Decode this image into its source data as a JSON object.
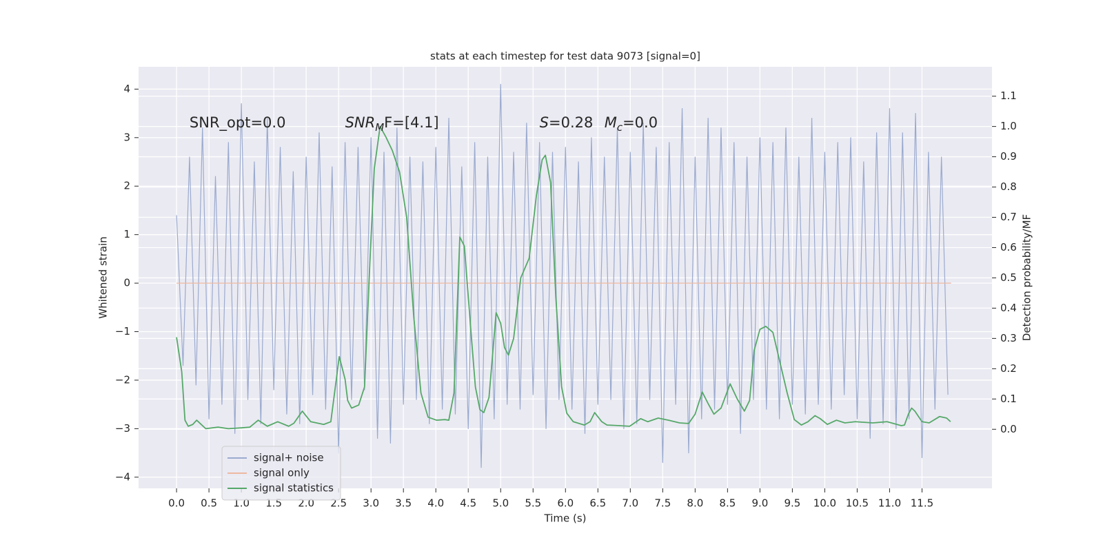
{
  "chart_data": {
    "type": "line",
    "title": "stats at each timestep for test data 9073 [signal=0]",
    "xlabel": "Time (s)",
    "ylabel": "Whitened strain",
    "y2label": "Detection probability/MF",
    "annotations": [
      {
        "text": "SNR_opt=0.0"
      },
      {
        "base": "SNR",
        "sub": "M",
        "rest": "F=[4.1]"
      },
      {
        "base": "S",
        "rest": "=0.28   "
      },
      {
        "base": "M",
        "sub": "c",
        "rest": "=0.0"
      }
    ],
    "grid": true,
    "legend": "lower left",
    "xlim": [
      -0.586,
      12.58
    ],
    "ylim": [
      -4.23,
      4.46
    ],
    "y2lim": [
      -0.195,
      1.197
    ],
    "xticks": [
      {
        "value": 0,
        "label": "0.0"
      },
      0.5,
      {
        "value": 1,
        "label": "1.0"
      },
      1.5,
      {
        "value": 2,
        "label": "2.0"
      },
      2.5,
      {
        "value": 3,
        "label": "3.0"
      },
      3.5,
      {
        "value": 4,
        "label": "4.0"
      },
      4.5,
      {
        "value": 5,
        "label": "5.0"
      },
      5.5,
      {
        "value": 6,
        "label": "6.0"
      },
      6.5,
      {
        "value": 7,
        "label": "7.0"
      },
      7.5,
      {
        "value": 8,
        "label": "8.0"
      },
      8.5,
      {
        "value": 9,
        "label": "9.0"
      },
      9.5,
      {
        "value": 10,
        "label": "10.0"
      },
      10.5,
      {
        "value": 11,
        "label": "11.0"
      },
      11.5
    ],
    "yticks": [
      {
        "value": -4,
        "label": "−4"
      },
      {
        "value": -3,
        "label": "−3"
      },
      {
        "value": -2,
        "label": "−2"
      },
      {
        "value": -1,
        "label": "−1"
      },
      0,
      1,
      2,
      3,
      4
    ],
    "y2ticks": [
      {
        "value": 0,
        "label": "0.0"
      },
      0.1,
      0.2,
      0.3,
      0.4,
      0.5,
      0.6,
      0.7,
      0.8,
      0.9,
      {
        "value": 1,
        "label": "1.0"
      },
      1.1
    ],
    "series": [
      {
        "name": "signal+ noise",
        "color": "#9aaacf",
        "axis": "y",
        "x": [
          0,
          0.1,
          0.2,
          0.3,
          0.4,
          0.5,
          0.6,
          0.7,
          0.8,
          0.9,
          1,
          1.1,
          1.2,
          1.3,
          1.4,
          1.5,
          1.6,
          1.7,
          1.8,
          1.9,
          2,
          2.1,
          2.2,
          2.3,
          2.4,
          2.5,
          2.6,
          2.7,
          2.8,
          2.9,
          3,
          3.1,
          3.2,
          3.3,
          3.4,
          3.5,
          3.6,
          3.7,
          3.8,
          3.9,
          4,
          4.1,
          4.2,
          4.3,
          4.4,
          4.5,
          4.6,
          4.7,
          4.8,
          4.9,
          5,
          5.1,
          5.2,
          5.3,
          5.4,
          5.5,
          5.6,
          5.7,
          5.8,
          5.9,
          6,
          6.1,
          6.2,
          6.3,
          6.4,
          6.5,
          6.6,
          6.7,
          6.8,
          6.9,
          7,
          7.1,
          7.2,
          7.3,
          7.4,
          7.5,
          7.6,
          7.7,
          7.8,
          7.9,
          8,
          8.1,
          8.2,
          8.3,
          8.4,
          8.5,
          8.6,
          8.7,
          8.8,
          8.9,
          9,
          9.1,
          9.2,
          9.3,
          9.4,
          9.5,
          9.6,
          9.7,
          9.8,
          9.9,
          10,
          10.1,
          10.2,
          10.3,
          10.4,
          10.5,
          10.6,
          10.7,
          10.8,
          10.9,
          11,
          11.1,
          11.2,
          11.3,
          11.4,
          11.5,
          11.6,
          11.7,
          11.8,
          11.9
        ],
        "values": [
          1.4,
          -1.7,
          2.6,
          -2.1,
          3.2,
          -2.8,
          2.2,
          -2.5,
          2.9,
          -3.1,
          3.7,
          -2.4,
          2.5,
          -2.9,
          3.4,
          -2.2,
          2.8,
          -2.7,
          2.3,
          -2.9,
          2.6,
          -2.3,
          3.1,
          -2.6,
          2.4,
          -3.5,
          2.9,
          -2.4,
          2.8,
          -2.2,
          3.0,
          -3.2,
          2.7,
          -3.3,
          3.2,
          -2.5,
          2.6,
          -2.4,
          2.5,
          -2.9,
          2.8,
          -2.6,
          3.4,
          -2.7,
          2.4,
          -3.0,
          2.9,
          -3.8,
          2.6,
          -2.8,
          4.1,
          -2.5,
          2.7,
          -2.6,
          3.3,
          -2.3,
          2.9,
          -3.0,
          2.7,
          -2.4,
          2.8,
          -2.6,
          2.5,
          -3.1,
          3.0,
          -2.5,
          2.6,
          -2.4,
          3.2,
          -3.0,
          2.7,
          -2.9,
          3.3,
          -2.4,
          2.8,
          -3.7,
          2.9,
          -2.5,
          3.6,
          -3.5,
          2.6,
          -2.8,
          3.4,
          -2.6,
          3.2,
          -2.5,
          2.9,
          -3.1,
          2.6,
          -2.4,
          3.0,
          -2.6,
          2.9,
          -2.8,
          3.2,
          -2.5,
          2.6,
          -2.7,
          3.4,
          -2.5,
          2.7,
          -2.6,
          2.9,
          -2.3,
          3.0,
          -2.8,
          2.5,
          -3.2,
          3.1,
          -2.9,
          3.6,
          -3.0,
          3.1,
          -2.8,
          3.5,
          -3.6,
          2.7,
          -2.6,
          2.6,
          -2.3
        ]
      },
      {
        "name": "signal only",
        "color": "#eeb8a0",
        "axis": "y",
        "x": [
          0,
          11.95
        ],
        "values": [
          0,
          0
        ]
      },
      {
        "name": "signal statistics",
        "color": "#55a868",
        "axis": "y2",
        "x": [
          0,
          0.08,
          0.13,
          0.18,
          0.25,
          0.31,
          0.45,
          0.64,
          0.8,
          1.02,
          1.13,
          1.26,
          1.4,
          1.56,
          1.73,
          1.81,
          1.94,
          2.07,
          2.27,
          2.38,
          2.51,
          2.6,
          2.64,
          2.7,
          2.81,
          2.9,
          2.97,
          3.05,
          3.14,
          3.23,
          3.33,
          3.44,
          3.55,
          3.66,
          3.77,
          3.88,
          4.01,
          4.14,
          4.2,
          4.28,
          4.37,
          4.44,
          4.55,
          4.61,
          4.68,
          4.74,
          4.82,
          4.93,
          5.0,
          5.06,
          5.12,
          5.2,
          5.31,
          5.44,
          5.55,
          5.64,
          5.69,
          5.77,
          5.85,
          5.94,
          6.02,
          6.12,
          6.29,
          6.38,
          6.45,
          6.56,
          6.64,
          6.83,
          6.99,
          7.16,
          7.27,
          7.43,
          7.59,
          7.76,
          7.9,
          8.0,
          8.11,
          8.2,
          8.29,
          8.4,
          8.54,
          8.65,
          8.76,
          8.84,
          8.91,
          9.0,
          9.09,
          9.2,
          9.31,
          9.42,
          9.53,
          9.64,
          9.74,
          9.85,
          9.93,
          10.04,
          10.18,
          10.31,
          10.47,
          10.74,
          10.96,
          11.18,
          11.23,
          11.29,
          11.34,
          11.39,
          11.5,
          11.61,
          11.77,
          11.88,
          11.94
        ],
        "values": [
          0.304,
          0.19,
          0.03,
          0.01,
          0.016,
          0.03,
          0.002,
          0.007,
          0.002,
          0.005,
          0.007,
          0.03,
          0.01,
          0.025,
          0.01,
          0.02,
          0.06,
          0.025,
          0.016,
          0.025,
          0.24,
          0.165,
          0.095,
          0.07,
          0.08,
          0.14,
          0.49,
          0.86,
          1.0,
          0.965,
          0.92,
          0.85,
          0.7,
          0.37,
          0.12,
          0.04,
          0.03,
          0.032,
          0.03,
          0.12,
          0.635,
          0.605,
          0.3,
          0.14,
          0.065,
          0.055,
          0.105,
          0.385,
          0.35,
          0.27,
          0.245,
          0.3,
          0.5,
          0.565,
          0.77,
          0.89,
          0.905,
          0.815,
          0.44,
          0.14,
          0.053,
          0.025,
          0.014,
          0.025,
          0.055,
          0.025,
          0.014,
          0.012,
          0.01,
          0.035,
          0.025,
          0.037,
          0.03,
          0.021,
          0.019,
          0.05,
          0.123,
          0.085,
          0.05,
          0.07,
          0.15,
          0.1,
          0.06,
          0.095,
          0.26,
          0.33,
          0.34,
          0.32,
          0.22,
          0.12,
          0.032,
          0.014,
          0.025,
          0.045,
          0.035,
          0.016,
          0.03,
          0.021,
          0.025,
          0.021,
          0.025,
          0.012,
          0.014,
          0.05,
          0.07,
          0.06,
          0.025,
          0.021,
          0.042,
          0.037,
          0.025
        ]
      }
    ]
  }
}
